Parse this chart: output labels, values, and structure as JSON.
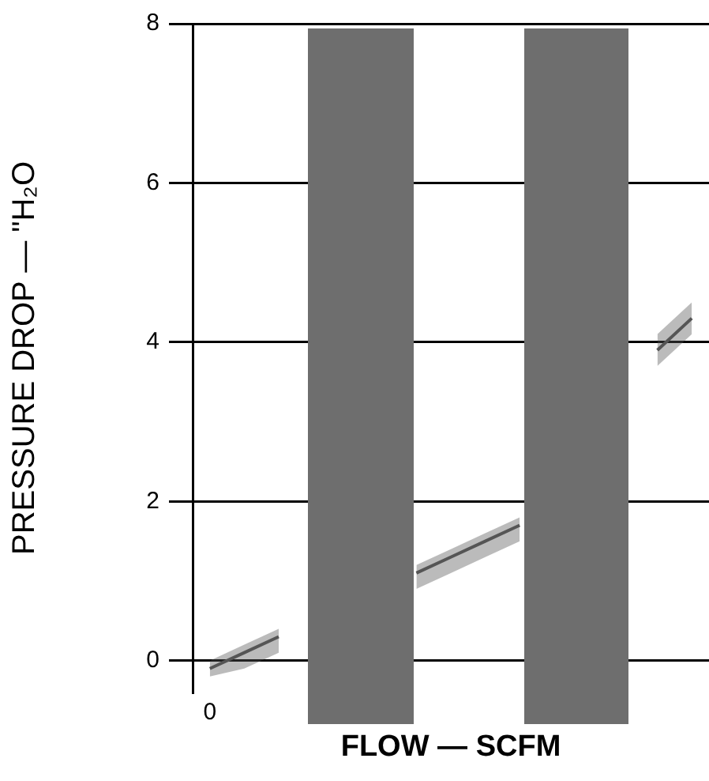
{
  "chart_data": {
    "type": "line",
    "xlabel": "FLOW — SCFM",
    "ylabel": "PRESSURE DROP — \"H₂O",
    "categories": [
      "0",
      null,
      null,
      null,
      null,
      null,
      null,
      null,
      null,
      null,
      null,
      null,
      null,
      null,
      null
    ],
    "series": [
      {
        "color": "#555555",
        "values": [
          -0.1,
          0.1,
          0.3,
          null,
          null,
          null,
          1.1,
          1.3,
          1.5,
          1.7,
          null,
          null,
          null,
          3.9,
          4.3
        ],
        "lower": [
          -0.2,
          -0.1,
          0.1,
          null,
          null,
          null,
          0.9,
          1.1,
          1.3,
          1.5,
          null,
          null,
          null,
          3.7,
          4.1
        ],
        "upper": [
          0.0,
          0.2,
          0.4,
          null,
          null,
          null,
          1.2,
          1.4,
          1.6,
          1.8,
          null,
          null,
          null,
          4.1,
          4.5
        ]
      }
    ],
    "ylim": [
      -0.4,
      8
    ],
    "yticks": [
      0,
      2,
      4,
      6,
      8
    ],
    "grid": "y",
    "marker": "none"
  }
}
